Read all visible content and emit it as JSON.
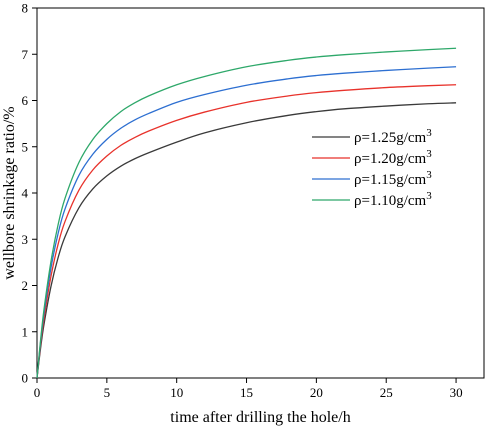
{
  "chart_data": {
    "type": "line",
    "xlabel": "time after drilling the hole/h",
    "ylabel": "wellbore shrinkage ratio/%",
    "xlim": [
      0,
      32
    ],
    "ylim": [
      0,
      8
    ],
    "x_ticks": [
      0,
      5,
      10,
      15,
      20,
      25,
      30
    ],
    "y_ticks": [
      0,
      1,
      2,
      3,
      4,
      5,
      6,
      7,
      8
    ],
    "grid": false,
    "legend_position": "center-right",
    "x": [
      0,
      0.25,
      0.5,
      1,
      1.5,
      2,
      3,
      4,
      5,
      6,
      7,
      8,
      10,
      12,
      15,
      18,
      20,
      22,
      25,
      28,
      30
    ],
    "series": [
      {
        "name": "ρ=1.25g/cm",
        "name_sup": "3",
        "color": "#3a3a3a",
        "values": [
          0,
          0.63,
          1.16,
          1.98,
          2.59,
          3.05,
          3.68,
          4.09,
          4.37,
          4.58,
          4.74,
          4.87,
          5.1,
          5.3,
          5.52,
          5.68,
          5.76,
          5.82,
          5.88,
          5.93,
          5.95
        ]
      },
      {
        "name": "ρ=1.20g/cm",
        "name_sup": "3",
        "color": "#e8322b",
        "values": [
          0,
          0.7,
          1.29,
          2.2,
          2.88,
          3.38,
          4.06,
          4.5,
          4.8,
          5.03,
          5.2,
          5.34,
          5.57,
          5.75,
          5.96,
          6.1,
          6.17,
          6.22,
          6.28,
          6.32,
          6.34
        ]
      },
      {
        "name": "ρ=1.15g/cm",
        "name_sup": "3",
        "color": "#2d6fd1",
        "values": [
          0,
          0.76,
          1.4,
          2.38,
          3.11,
          3.65,
          4.38,
          4.84,
          5.16,
          5.4,
          5.58,
          5.72,
          5.96,
          6.13,
          6.33,
          6.47,
          6.54,
          6.59,
          6.65,
          6.7,
          6.73
        ]
      },
      {
        "name": "ρ=1.10g/cm",
        "name_sup": "3",
        "color": "#2ea86a",
        "values": [
          0,
          0.8,
          1.48,
          2.52,
          3.3,
          3.88,
          4.66,
          5.16,
          5.5,
          5.76,
          5.95,
          6.1,
          6.34,
          6.52,
          6.73,
          6.87,
          6.94,
          6.99,
          7.05,
          7.1,
          7.13
        ]
      }
    ]
  }
}
